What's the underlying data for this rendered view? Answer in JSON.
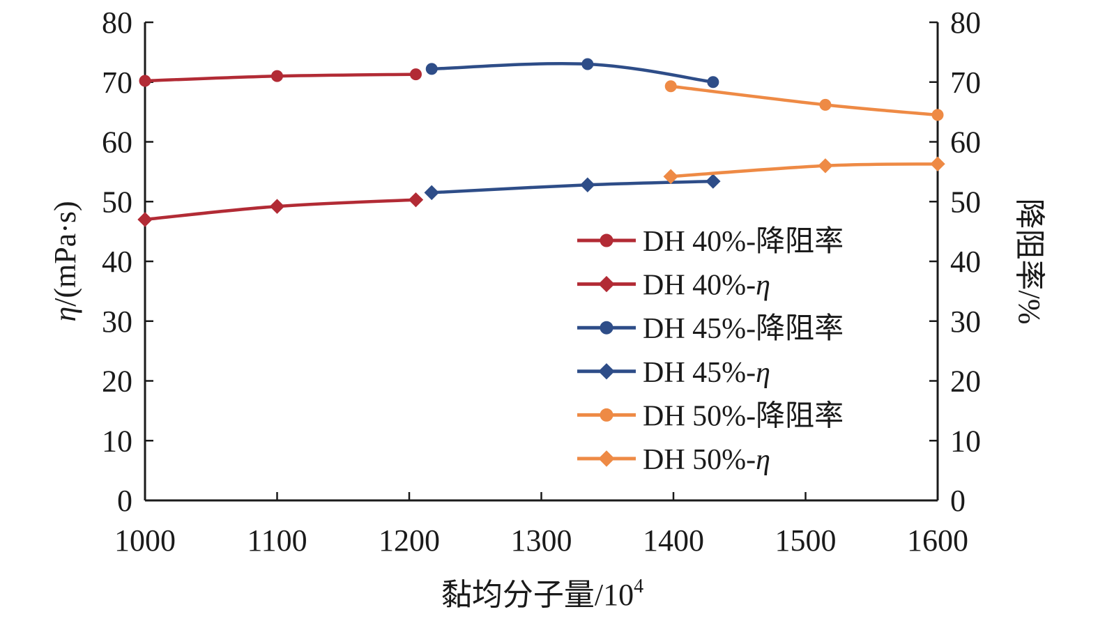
{
  "chart_data": {
    "type": "line",
    "x_axis": {
      "label_main": "黏均分子量/10",
      "label_sup": "4",
      "range": [
        1000,
        1600
      ],
      "ticks": [
        "1000",
        "1100",
        "1200",
        "1300",
        "1400",
        "1500",
        "1600"
      ]
    },
    "y_left": {
      "label_symbol": "η",
      "label_rest": "/(mPa·s)",
      "range": [
        0,
        80
      ],
      "ticks": [
        "0",
        "10",
        "20",
        "30",
        "40",
        "50",
        "60",
        "70",
        "80"
      ]
    },
    "y_right": {
      "label": "降阻率/%",
      "range": [
        0,
        80
      ],
      "ticks": [
        "0",
        "10",
        "20",
        "30",
        "40",
        "50",
        "60",
        "70",
        "80"
      ]
    },
    "grid": false,
    "legend_position": "center-right",
    "series": [
      {
        "name_main": "DH 40%-降阻率",
        "name_italic": "",
        "axis": "right",
        "marker": "circle",
        "color": "#b22b35",
        "x": [
          1000,
          1100,
          1205
        ],
        "y": [
          70.2,
          71.0,
          71.3
        ]
      },
      {
        "name_main": "DH 40%-",
        "name_italic": "η",
        "axis": "left",
        "marker": "diamond",
        "color": "#b22b35",
        "x": [
          1000,
          1100,
          1205
        ],
        "y": [
          47.0,
          49.2,
          50.3
        ]
      },
      {
        "name_main": "DH 45%-降阻率",
        "name_italic": "",
        "axis": "right",
        "marker": "circle",
        "color": "#2e4d88",
        "x": [
          1217,
          1335,
          1430
        ],
        "y": [
          72.2,
          73.0,
          70.0
        ]
      },
      {
        "name_main": "DH 45%-",
        "name_italic": "η",
        "axis": "left",
        "marker": "diamond",
        "color": "#2e4d88",
        "x": [
          1217,
          1335,
          1430
        ],
        "y": [
          51.5,
          52.8,
          53.4
        ]
      },
      {
        "name_main": "DH 50%-降阻率",
        "name_italic": "",
        "axis": "right",
        "marker": "circle",
        "color": "#ee8a45",
        "x": [
          1398,
          1515,
          1600
        ],
        "y": [
          69.3,
          66.2,
          64.5
        ]
      },
      {
        "name_main": "DH 50%-",
        "name_italic": "η",
        "axis": "left",
        "marker": "diamond",
        "color": "#ee8a45",
        "x": [
          1398,
          1515,
          1600
        ],
        "y": [
          54.2,
          56.0,
          56.3
        ]
      }
    ]
  }
}
